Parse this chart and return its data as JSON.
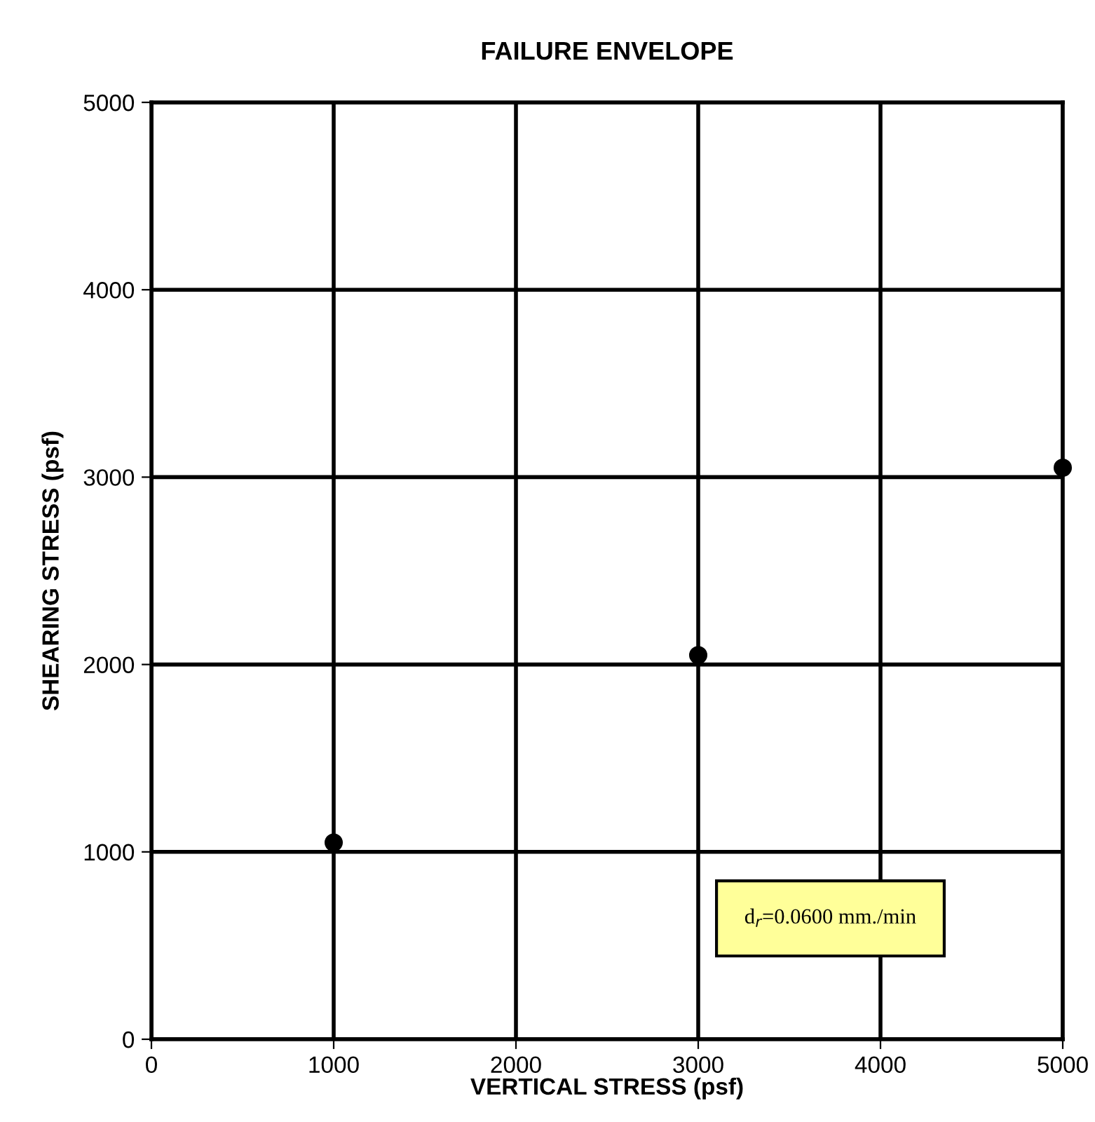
{
  "chart_data": {
    "type": "scatter",
    "title": "FAILURE ENVELOPE",
    "xlabel": "VERTICAL STRESS (psf)",
    "ylabel": "SHEARING STRESS (psf)",
    "x": [
      1000,
      3000,
      5000
    ],
    "series": [
      {
        "color": "#000000",
        "values": [
          1050,
          2050,
          3050
        ]
      }
    ],
    "marker": "circle",
    "xlim": [
      0,
      5000
    ],
    "ylim": [
      0,
      5000
    ],
    "xticks": [
      0,
      1000,
      2000,
      3000,
      4000,
      5000
    ],
    "yticks": [
      0,
      1000,
      2000,
      3000,
      4000,
      5000
    ],
    "grid": true,
    "annotations": [
      "d$_{r}$=0.0600 mm./min"
    ]
  }
}
